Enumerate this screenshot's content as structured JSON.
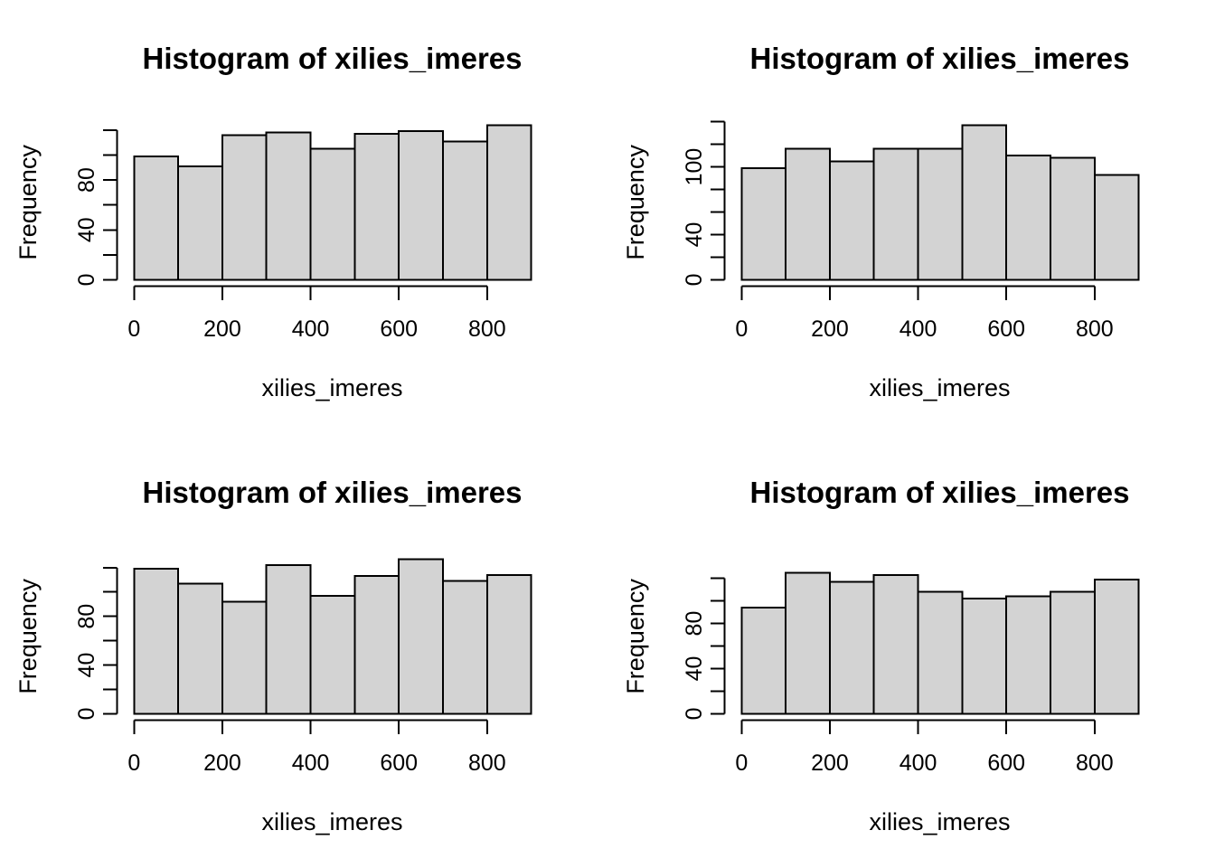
{
  "page": {
    "background": "#ffffff",
    "text_color": "#000000"
  },
  "style": {
    "bar_fill": "#d3d3d3",
    "bar_stroke": "#000000",
    "axis_color": "#000000"
  },
  "chart_data": [
    {
      "type": "bar",
      "panel": "top-left",
      "title": "Histogram of xilies_imeres",
      "xlabel": "xilies_imeres",
      "ylabel": "Frequency",
      "bin_edges": [
        0,
        100,
        200,
        300,
        400,
        500,
        600,
        700,
        800,
        900
      ],
      "counts": [
        99,
        91,
        116,
        118,
        105,
        117,
        119,
        111,
        124
      ],
      "xlim": [
        0,
        900
      ],
      "ylim": [
        0,
        124
      ],
      "x_ticks": [
        0,
        200,
        400,
        600,
        800
      ],
      "x_tick_labels": [
        "0",
        "200",
        "400",
        "600",
        "800"
      ],
      "y_ticks": [
        0,
        20,
        40,
        60,
        80,
        100,
        120
      ],
      "y_ticks_labeled": [
        0,
        40,
        80
      ],
      "y_tick_labels_shown": [
        "0",
        "40",
        "80"
      ],
      "grid": false,
      "legend": "none"
    },
    {
      "type": "bar",
      "panel": "top-right",
      "title": "Histogram of xilies_imeres",
      "xlabel": "xilies_imeres",
      "ylabel": "Frequency",
      "bin_edges": [
        0,
        100,
        200,
        300,
        400,
        500,
        600,
        700,
        800,
        900
      ],
      "counts": [
        99,
        116,
        105,
        116,
        116,
        137,
        110,
        108,
        93
      ],
      "xlim": [
        0,
        900
      ],
      "ylim": [
        0,
        137
      ],
      "x_ticks": [
        0,
        200,
        400,
        600,
        800
      ],
      "x_tick_labels": [
        "0",
        "200",
        "400",
        "600",
        "800"
      ],
      "y_ticks": [
        0,
        20,
        40,
        60,
        80,
        100,
        120,
        140
      ],
      "y_ticks_labeled": [
        0,
        40,
        100
      ],
      "y_tick_labels_shown": [
        "0",
        "40",
        "100"
      ],
      "grid": false,
      "legend": "none"
    },
    {
      "type": "bar",
      "panel": "bottom-left",
      "title": "Histogram of xilies_imeres",
      "xlabel": "xilies_imeres",
      "ylabel": "Frequency",
      "bin_edges": [
        0,
        100,
        200,
        300,
        400,
        500,
        600,
        700,
        800,
        900
      ],
      "counts": [
        119,
        107,
        92,
        122,
        97,
        113,
        127,
        109,
        114
      ],
      "xlim": [
        0,
        900
      ],
      "ylim": [
        0,
        127
      ],
      "x_ticks": [
        0,
        200,
        400,
        600,
        800
      ],
      "x_tick_labels": [
        "0",
        "200",
        "400",
        "600",
        "800"
      ],
      "y_ticks": [
        0,
        20,
        40,
        60,
        80,
        100,
        120
      ],
      "y_ticks_labeled": [
        0,
        40,
        80
      ],
      "y_tick_labels_shown": [
        "0",
        "40",
        "80"
      ],
      "grid": false,
      "legend": "none"
    },
    {
      "type": "bar",
      "panel": "bottom-right",
      "title": "Histogram of xilies_imeres",
      "xlabel": "xilies_imeres",
      "ylabel": "Frequency",
      "bin_edges": [
        0,
        100,
        200,
        300,
        400,
        500,
        600,
        700,
        800,
        900
      ],
      "counts": [
        94,
        125,
        117,
        123,
        108,
        102,
        104,
        108,
        119
      ],
      "xlim": [
        0,
        900
      ],
      "ylim": [
        0,
        137
      ],
      "x_ticks": [
        0,
        200,
        400,
        600,
        800
      ],
      "x_tick_labels": [
        "0",
        "200",
        "400",
        "600",
        "800"
      ],
      "y_ticks": [
        0,
        20,
        40,
        60,
        80,
        100,
        120
      ],
      "y_ticks_labeled": [
        0,
        40,
        80
      ],
      "y_tick_labels_shown": [
        "0",
        "40",
        "80"
      ],
      "grid": false,
      "legend": "none"
    }
  ]
}
